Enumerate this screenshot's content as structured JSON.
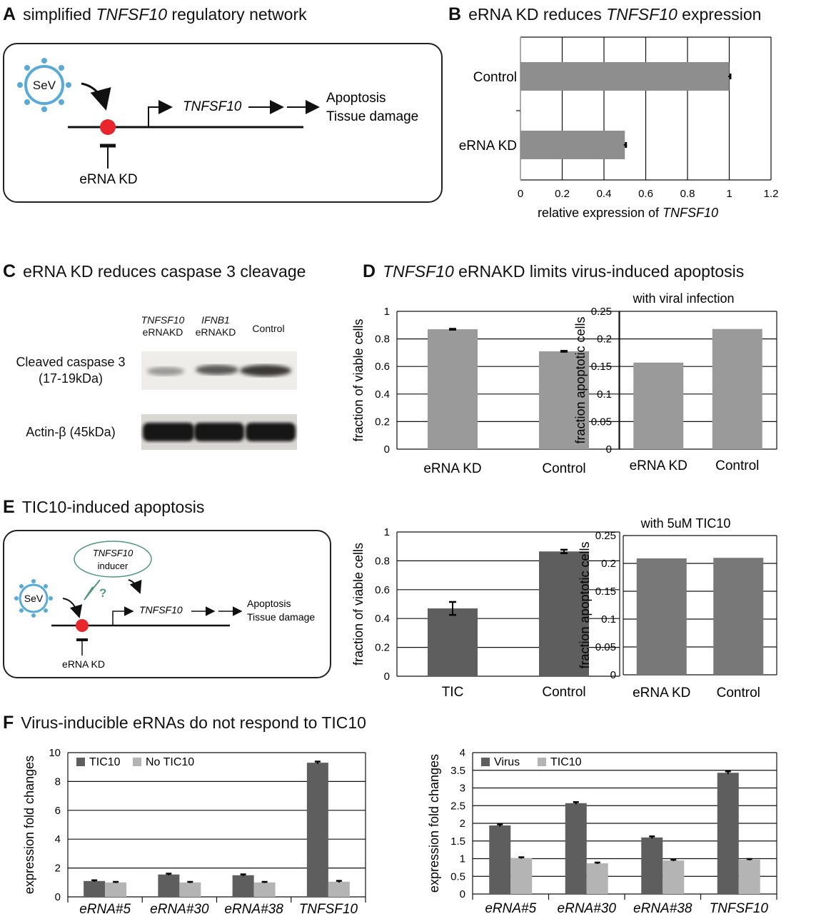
{
  "panels": {
    "A": {
      "letter": "A",
      "title_pre": "simplified ",
      "title_italic": "TNFSF10",
      "title_post": " regulatory network",
      "sev": "SeV",
      "gene": "TNFSF10",
      "outcome1": "Apoptosis",
      "outcome2": "Tissue damage",
      "kd": "eRNA KD"
    },
    "B": {
      "letter": "B",
      "title_pre": "eRNA  KD reduces ",
      "title_italic": "TNFSF10",
      "title_post": " expression"
    },
    "C": {
      "letter": "C",
      "title": "eRNA KD reduces caspase 3 cleavage",
      "lanes": [
        {
          "gene": "TNFSF10",
          "sub": "eRNAKD"
        },
        {
          "gene": "IFNB1",
          "sub": "eRNAKD"
        },
        {
          "gene": "",
          "sub": "Control"
        }
      ],
      "band1": "Cleaved caspase 3",
      "band1_sub": "(17-19kDa)",
      "band2": "Actin-β (45kDa)"
    },
    "D": {
      "letter": "D",
      "title_italic": "TNFSF10",
      "title_post": " eRNAKD limits virus-induced apoptosis"
    },
    "E": {
      "letter": "E",
      "title": "TIC10-induced apoptosis",
      "sev": "SeV",
      "inducer_gene": "TNFSF10",
      "inducer_word": "inducer",
      "question": "?",
      "gene": "TNFSF10",
      "outcome1": "Apoptosis",
      "outcome2": "Tissue damage",
      "kd": "eRNA KD"
    },
    "F": {
      "letter": "F",
      "title": "Virus-inducible eRNAs do not respond to TIC10"
    }
  },
  "chart_data": [
    {
      "id": "B",
      "type": "bar",
      "orientation": "horizontal",
      "categories": [
        "Control",
        "eRNA  KD"
      ],
      "values": [
        1.0,
        0.5
      ],
      "errors": [
        0.005,
        0.005
      ],
      "xlabel_pre": "relative expression of ",
      "xlabel_italic": "TNFSF10",
      "xlim": [
        0,
        1.2
      ],
      "ticks": [
        "0",
        "0.2",
        "0.4",
        "0.6",
        "0.8",
        "1",
        "1.2"
      ],
      "grid": "vertical",
      "bar_color": "#8e8e8e"
    },
    {
      "id": "D1",
      "type": "bar",
      "categories": [
        "eRNA  KD",
        "Control"
      ],
      "values": [
        0.87,
        0.71
      ],
      "errors": [
        0.003,
        0.003
      ],
      "ylabel": "fraction of viable cells",
      "ylim": [
        0,
        1
      ],
      "ticks": [
        "0",
        "0.2",
        "0.4",
        "0.6",
        "0.8",
        "1"
      ],
      "grid": "horizontal",
      "bar_color": "#9a9a9a"
    },
    {
      "id": "D2",
      "type": "bar",
      "title": "with viral infection",
      "categories": [
        "eRNA  KD",
        "Control"
      ],
      "values": [
        0.157,
        0.218
      ],
      "ylabel": "fraction apoptotic cells",
      "ylim": [
        0,
        0.25
      ],
      "ticks": [
        "0",
        "0.05",
        "0.1",
        "0.15",
        "0.2",
        "0.25"
      ],
      "grid": "horizontal",
      "bar_color": "#9a9a9a"
    },
    {
      "id": "E1",
      "type": "bar",
      "categories": [
        "TIC",
        "Control"
      ],
      "values": [
        0.47,
        0.865
      ],
      "errors": [
        0.045,
        0.012
      ],
      "ylabel": "fraction of viable cells",
      "ylim": [
        0,
        1
      ],
      "ticks": [
        "0",
        "0.2",
        "0.4",
        "0.6",
        "0.8",
        "1"
      ],
      "grid": "horizontal",
      "bar_color": "#5e5e5e"
    },
    {
      "id": "E2",
      "type": "bar",
      "title": "with 5uM TIC10",
      "categories": [
        "eRNA  KD",
        "Control"
      ],
      "values": [
        0.209,
        0.21
      ],
      "ylabel": "fraction apoptotic cells",
      "ylim": [
        0,
        0.25
      ],
      "ticks": [
        "0",
        "0.05",
        "0.1",
        "0.15",
        "0.2",
        "0.25"
      ],
      "grid": "horizontal",
      "bar_color": "#787878"
    },
    {
      "id": "F1",
      "type": "bar",
      "categories": [
        "eRNA#5",
        "eRNA#30",
        "eRNA#38",
        "TNFSF10"
      ],
      "series": [
        {
          "name": "TIC10",
          "values": [
            1.1,
            1.55,
            1.5,
            9.3
          ],
          "errors": [
            0.05,
            0.06,
            0.06,
            0.08
          ],
          "color": "#5e5e5e"
        },
        {
          "name": "No TIC10",
          "values": [
            1.0,
            1.0,
            1.0,
            1.05
          ],
          "errors": [
            0.04,
            0.04,
            0.04,
            0.06
          ],
          "color": "#b4b4b4"
        }
      ],
      "ylabel": "expression fold changes",
      "ylim": [
        0,
        10
      ],
      "ticks": [
        "0",
        "2",
        "4",
        "6",
        "8",
        "10"
      ],
      "grid": "horizontal",
      "legend": "top-left"
    },
    {
      "id": "F2",
      "type": "bar",
      "categories": [
        "eRNA#5",
        "eRNA#30",
        "eRNA#38",
        "TNFSF10"
      ],
      "series": [
        {
          "name": "Virus",
          "values": [
            1.94,
            2.57,
            1.6,
            3.43
          ],
          "errors": [
            0.03,
            0.03,
            0.03,
            0.04
          ],
          "color": "#5e5e5e"
        },
        {
          "name": "TIC10",
          "values": [
            1.02,
            0.87,
            0.95,
            0.97
          ],
          "errors": [
            0.02,
            0.02,
            0.02,
            0.02
          ],
          "color": "#b4b4b4"
        }
      ],
      "ylabel": "expression fold changes",
      "ylim": [
        0,
        4
      ],
      "ticks": [
        "0",
        "0.5",
        "1",
        "1.5",
        "2",
        "2.5",
        "3",
        "3.5",
        "4"
      ],
      "grid": "horizontal",
      "legend": "top-left"
    }
  ]
}
